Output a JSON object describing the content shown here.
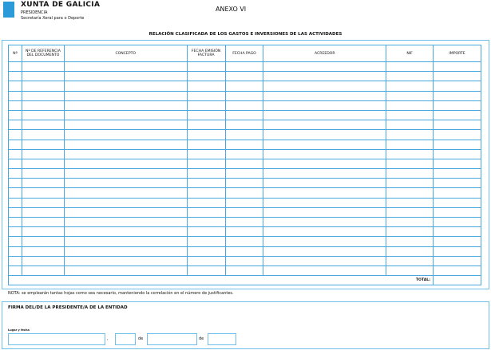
{
  "header": {
    "org": "XUNTA DE GALICIA",
    "dept": "PRESIDENCIA",
    "subdept": "Secretaría Xeral para o Deporte",
    "annex": "ANEXO VI",
    "brand_color": "#2a9ad8"
  },
  "title": "RELACIÓN CLASIFICADA DE LOS GASTOS E INVERSIONES DE LAS ACTIVIDADES",
  "table": {
    "columns": [
      "Nº",
      "Nº DE REFERENCIA DEL DOCUMENTO",
      "CONCEPTO",
      "FECHA EMISIÓN FACTURA",
      "FECHA PAGO",
      "ACREEDOR",
      "NIF",
      "IMPORTE"
    ],
    "total_label": "TOTAL:"
  },
  "note": "NOTA: se emplearán tantas hojas como sea necesario, manteniendo la correlación en el número de justificantes.",
  "signature": {
    "title": "FIRMA DEL/DE LA PRESIDENTE/A DE LA ENTIDAD",
    "place_date_label": "Lugar y fecha",
    "comma": ",",
    "de1": "de",
    "de2": "de"
  }
}
